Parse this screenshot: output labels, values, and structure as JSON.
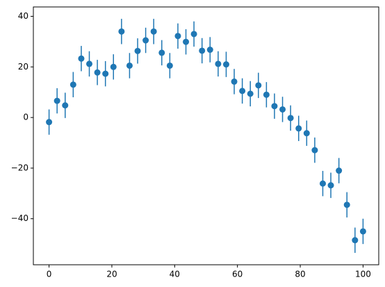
{
  "chart_data": {
    "type": "errorbar",
    "color": "#1f77b4",
    "x": [
      0,
      2.56,
      5.13,
      7.69,
      10.26,
      12.82,
      15.38,
      17.95,
      20.51,
      23.08,
      25.64,
      28.21,
      30.77,
      33.33,
      35.9,
      38.46,
      41.03,
      43.59,
      46.15,
      48.72,
      51.28,
      53.85,
      56.41,
      58.97,
      61.54,
      64.1,
      66.67,
      69.23,
      71.79,
      74.36,
      76.92,
      79.49,
      82.05,
      84.62,
      87.18,
      89.74,
      92.31,
      94.87,
      97.44,
      100
    ],
    "values": [
      -1.8,
      6.6,
      4.8,
      13,
      23.3,
      21.2,
      17.8,
      17.3,
      20,
      34,
      20.5,
      26.3,
      30.5,
      34,
      25.6,
      20.5,
      32.2,
      29.9,
      33,
      26.4,
      26.8,
      21.2,
      21,
      14.2,
      10.5,
      9.4,
      12.7,
      9,
      4.5,
      3.2,
      -0.2,
      -4.3,
      -6.2,
      -12.9,
      -26.1,
      -26.8,
      -21,
      -34.5,
      -48.5,
      -45
    ],
    "errors": [
      5,
      5,
      5,
      5,
      5,
      5,
      5,
      5,
      5,
      5,
      5,
      5,
      5,
      5,
      5,
      5,
      5,
      5,
      5,
      5,
      5,
      5,
      5,
      5,
      5,
      5,
      5,
      5,
      5,
      5,
      5,
      5,
      5,
      5,
      5,
      5,
      5,
      5,
      5,
      5
    ],
    "xlim": [
      -5,
      105
    ],
    "ylim": [
      -58.2,
      43.7
    ],
    "xticks": [
      0,
      20,
      40,
      60,
      80,
      100
    ],
    "yticks": [
      {
        "value": -40,
        "label": "−40"
      },
      {
        "value": -20,
        "label": "−20"
      },
      0,
      20,
      40
    ]
  }
}
